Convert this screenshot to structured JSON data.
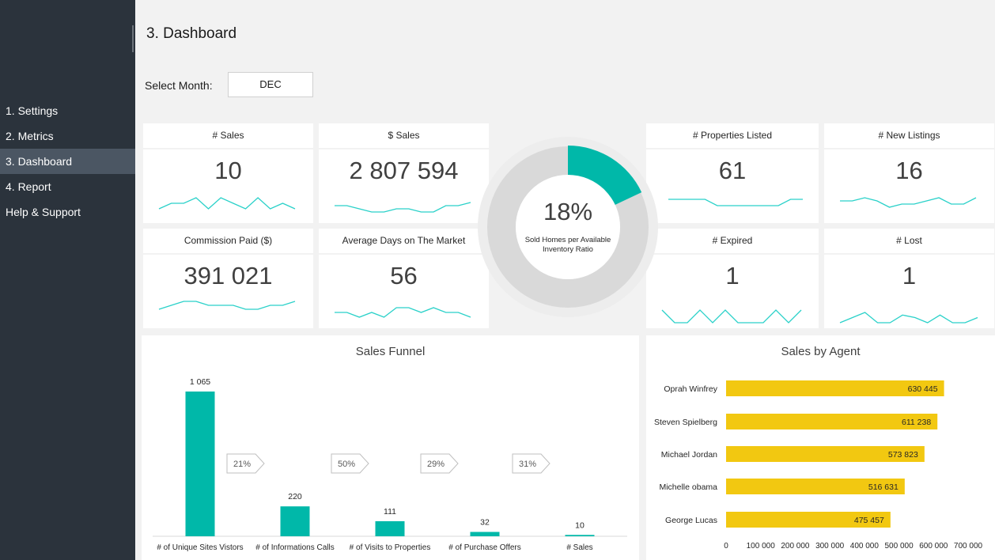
{
  "sidebar": {
    "items": [
      {
        "label": "1. Settings"
      },
      {
        "label": "2. Metrics"
      },
      {
        "label": "3. Dashboard",
        "active": true
      },
      {
        "label": "4. Report"
      },
      {
        "label": "Help & Support"
      }
    ]
  },
  "header": {
    "title": "3. Dashboard"
  },
  "month_filter": {
    "label": "Select Month:",
    "value": "DEC"
  },
  "kpis": {
    "sales_count": {
      "title": "# Sales",
      "value": "10",
      "trend": [
        3,
        4,
        4,
        5,
        3,
        5,
        4,
        3,
        5,
        3,
        4,
        3
      ]
    },
    "sales_amount": {
      "title": "$ Sales",
      "value": "2 807 594",
      "trend": [
        5,
        5,
        4,
        3,
        3,
        4,
        4,
        3,
        3,
        5,
        5,
        6
      ]
    },
    "commission": {
      "title": "Commission Paid ($)",
      "value": "391 021",
      "trend": [
        3,
        4,
        5,
        5,
        4,
        4,
        4,
        3,
        3,
        4,
        4,
        5
      ]
    },
    "avg_days": {
      "title": "Average Days on The Market",
      "value": "56",
      "trend": [
        4,
        4,
        3,
        4,
        3,
        5,
        5,
        4,
        5,
        4,
        4,
        3
      ]
    },
    "properties_listed": {
      "title": "# Properties Listed",
      "value": "61",
      "trend": [
        5,
        5,
        5,
        5,
        4,
        4,
        4,
        4,
        4,
        4,
        5,
        5
      ]
    },
    "new_listings": {
      "title": "# New Listings",
      "value": "16",
      "trend": [
        4,
        4,
        5,
        4,
        2,
        3,
        3,
        4,
        5,
        3,
        3,
        5
      ]
    },
    "expired": {
      "title": "# Expired",
      "value": "1",
      "trend": [
        6,
        2,
        2,
        6,
        2,
        6,
        2,
        2,
        2,
        6,
        2,
        6
      ]
    },
    "lost": {
      "title": "# Lost",
      "value": "1",
      "trend": [
        2,
        4,
        6,
        2,
        2,
        5,
        4,
        2,
        5,
        2,
        2,
        4
      ]
    }
  },
  "ratio": {
    "value": 18,
    "label": "18%",
    "caption_line1": "Sold Homes per Available",
    "caption_line2": "Inventory Ratio",
    "accent": "#00b8a9",
    "track": "#d9d9d9"
  },
  "chart_data": [
    {
      "type": "bar",
      "title": "Sales Funnel",
      "categories": [
        "# of Unique Sites Vistors",
        "# of Informations Calls",
        "# of Visits to Properties",
        "# of Purchase Offers",
        "# Sales"
      ],
      "values": [
        1065,
        220,
        111,
        32,
        10
      ],
      "value_labels": [
        "1 065",
        "220",
        "111",
        "32",
        "10"
      ],
      "conversion_rates": [
        "21%",
        "50%",
        "29%",
        "31%"
      ],
      "color": "#00b8a9"
    },
    {
      "type": "bar",
      "orientation": "horizontal",
      "title": "Sales by Agent",
      "categories": [
        "Oprah Winfrey",
        "Steven Spielberg",
        "Michael Jordan",
        "Michelle obama",
        "George Lucas"
      ],
      "values": [
        630445,
        611238,
        573823,
        516631,
        475457
      ],
      "value_labels": [
        "630 445",
        "611 238",
        "573 823",
        "516 631",
        "475 457"
      ],
      "xlim": [
        0,
        700000
      ],
      "x_ticks": [
        "0",
        "100 000",
        "200 000",
        "300 000",
        "400 000",
        "500 000",
        "600 000",
        "700 000"
      ],
      "color": "#f2c811"
    }
  ],
  "colors": {
    "sidebar": "#2b333c",
    "sidebar_active": "#4b5663",
    "sparkline": "#2ad1c9"
  }
}
